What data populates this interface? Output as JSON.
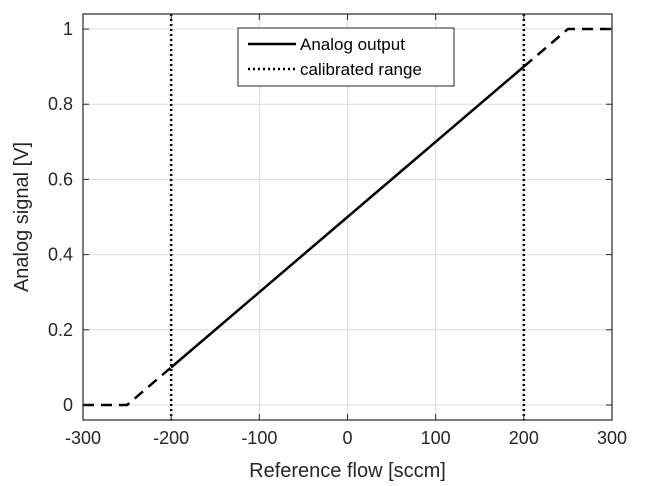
{
  "chart_data": {
    "type": "line",
    "title": "",
    "xlabel": "Reference flow [sccm]",
    "ylabel": "Analog signal [V]",
    "xlim": [
      -300,
      300
    ],
    "ylim": [
      -0.04,
      1.04
    ],
    "xticks": [
      -300,
      -200,
      -100,
      0,
      100,
      200,
      300
    ],
    "xtick_labels": [
      "-300",
      "-200",
      "-100",
      "0",
      "100",
      "200",
      "300"
    ],
    "yticks": [
      0,
      0.2,
      0.4,
      0.6,
      0.8,
      1
    ],
    "ytick_labels": [
      "0",
      "0.2",
      "0.4",
      "0.6",
      "0.8",
      "1"
    ],
    "grid": true,
    "legend_position": "top-center",
    "series": [
      {
        "name": "Analog output",
        "style": "solid",
        "color": "#000000",
        "x": [
          -200,
          200
        ],
        "y": [
          0.1,
          0.9
        ]
      },
      {
        "style": "dashed",
        "color": "#000000",
        "x": [
          -300,
          -250,
          -200
        ],
        "y": [
          0,
          0,
          0.1
        ]
      },
      {
        "style": "dashed",
        "color": "#000000",
        "x": [
          200,
          250,
          300
        ],
        "y": [
          0.9,
          1,
          1
        ]
      },
      {
        "name": "calibrated range",
        "style": "dotted",
        "color": "#000000",
        "vlines": [
          -200,
          200
        ]
      }
    ]
  }
}
